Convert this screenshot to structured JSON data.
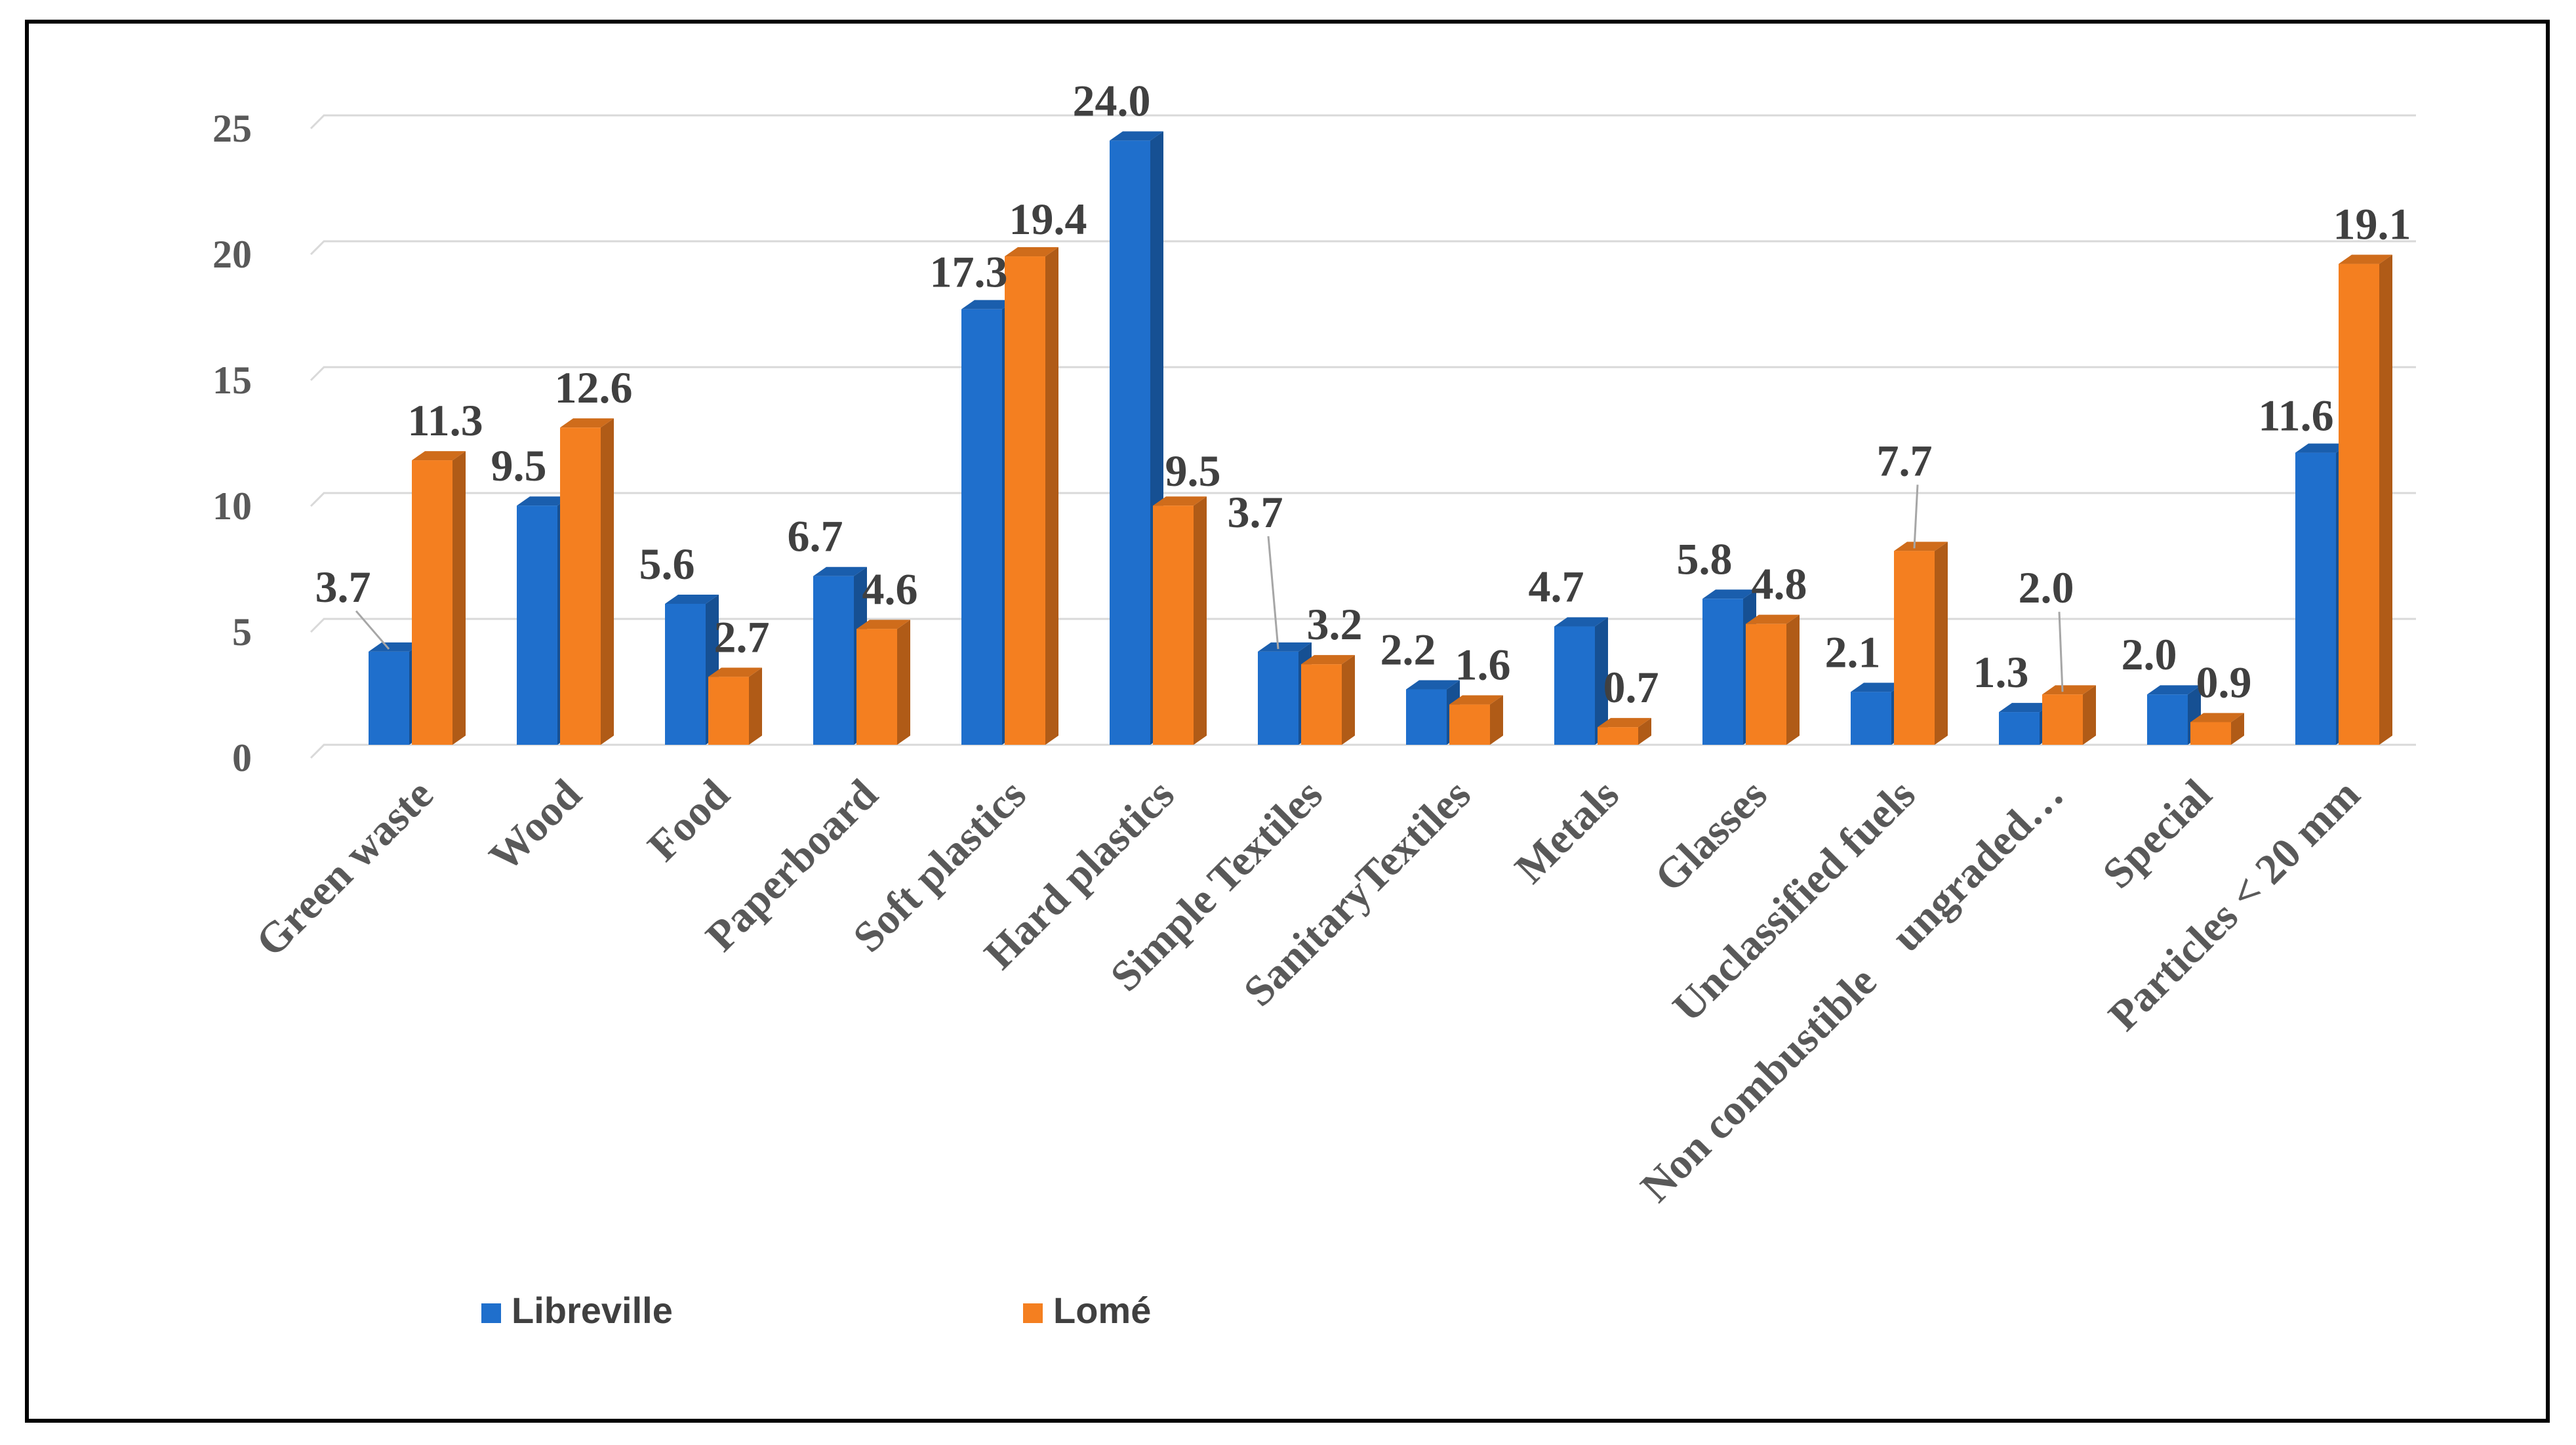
{
  "chart_data": {
    "type": "bar",
    "title": "",
    "xlabel": "",
    "ylabel": "",
    "ylim": [
      0,
      25
    ],
    "yticks": [
      "0",
      "5",
      "10",
      "15",
      "20",
      "25"
    ],
    "grid": true,
    "categories": [
      "Green waste",
      "Wood",
      "Food",
      "Paperboard",
      "Soft plastics",
      "Hard plastics",
      "Simple Textiles",
      "SanitaryTextiles",
      "Metals",
      "Glasses",
      "Unclassified fuels",
      "Non combustible    ungraded…",
      "Special",
      "Particles < 20 mm"
    ],
    "series": [
      {
        "name": "Libreville",
        "color": "#1F6FCC",
        "values": [
          3.7,
          9.5,
          5.6,
          6.7,
          17.3,
          24.0,
          3.7,
          2.2,
          4.7,
          5.8,
          2.1,
          1.3,
          2.0,
          11.6
        ],
        "labels": [
          "3.7",
          "9.5",
          "5.6",
          "6.7",
          "17.3",
          "24.0",
          "3.7",
          "2.2",
          "4.7",
          "5.8",
          "2.1",
          "1.3",
          "2.0",
          "11.6"
        ]
      },
      {
        "name": "Lomé",
        "color": "#F47F20",
        "values": [
          11.3,
          12.6,
          2.7,
          4.6,
          19.4,
          9.5,
          3.2,
          1.6,
          0.7,
          4.8,
          7.7,
          2.0,
          0.9,
          19.1
        ],
        "labels": [
          "11.3",
          "12.6",
          "2.7",
          "4.6",
          "19.4",
          "9.5",
          "3.2",
          "1.6",
          "0.7",
          "4.8",
          "7.7",
          "2.0",
          "0.9",
          "19.1"
        ]
      }
    ],
    "legend": "bottom"
  }
}
